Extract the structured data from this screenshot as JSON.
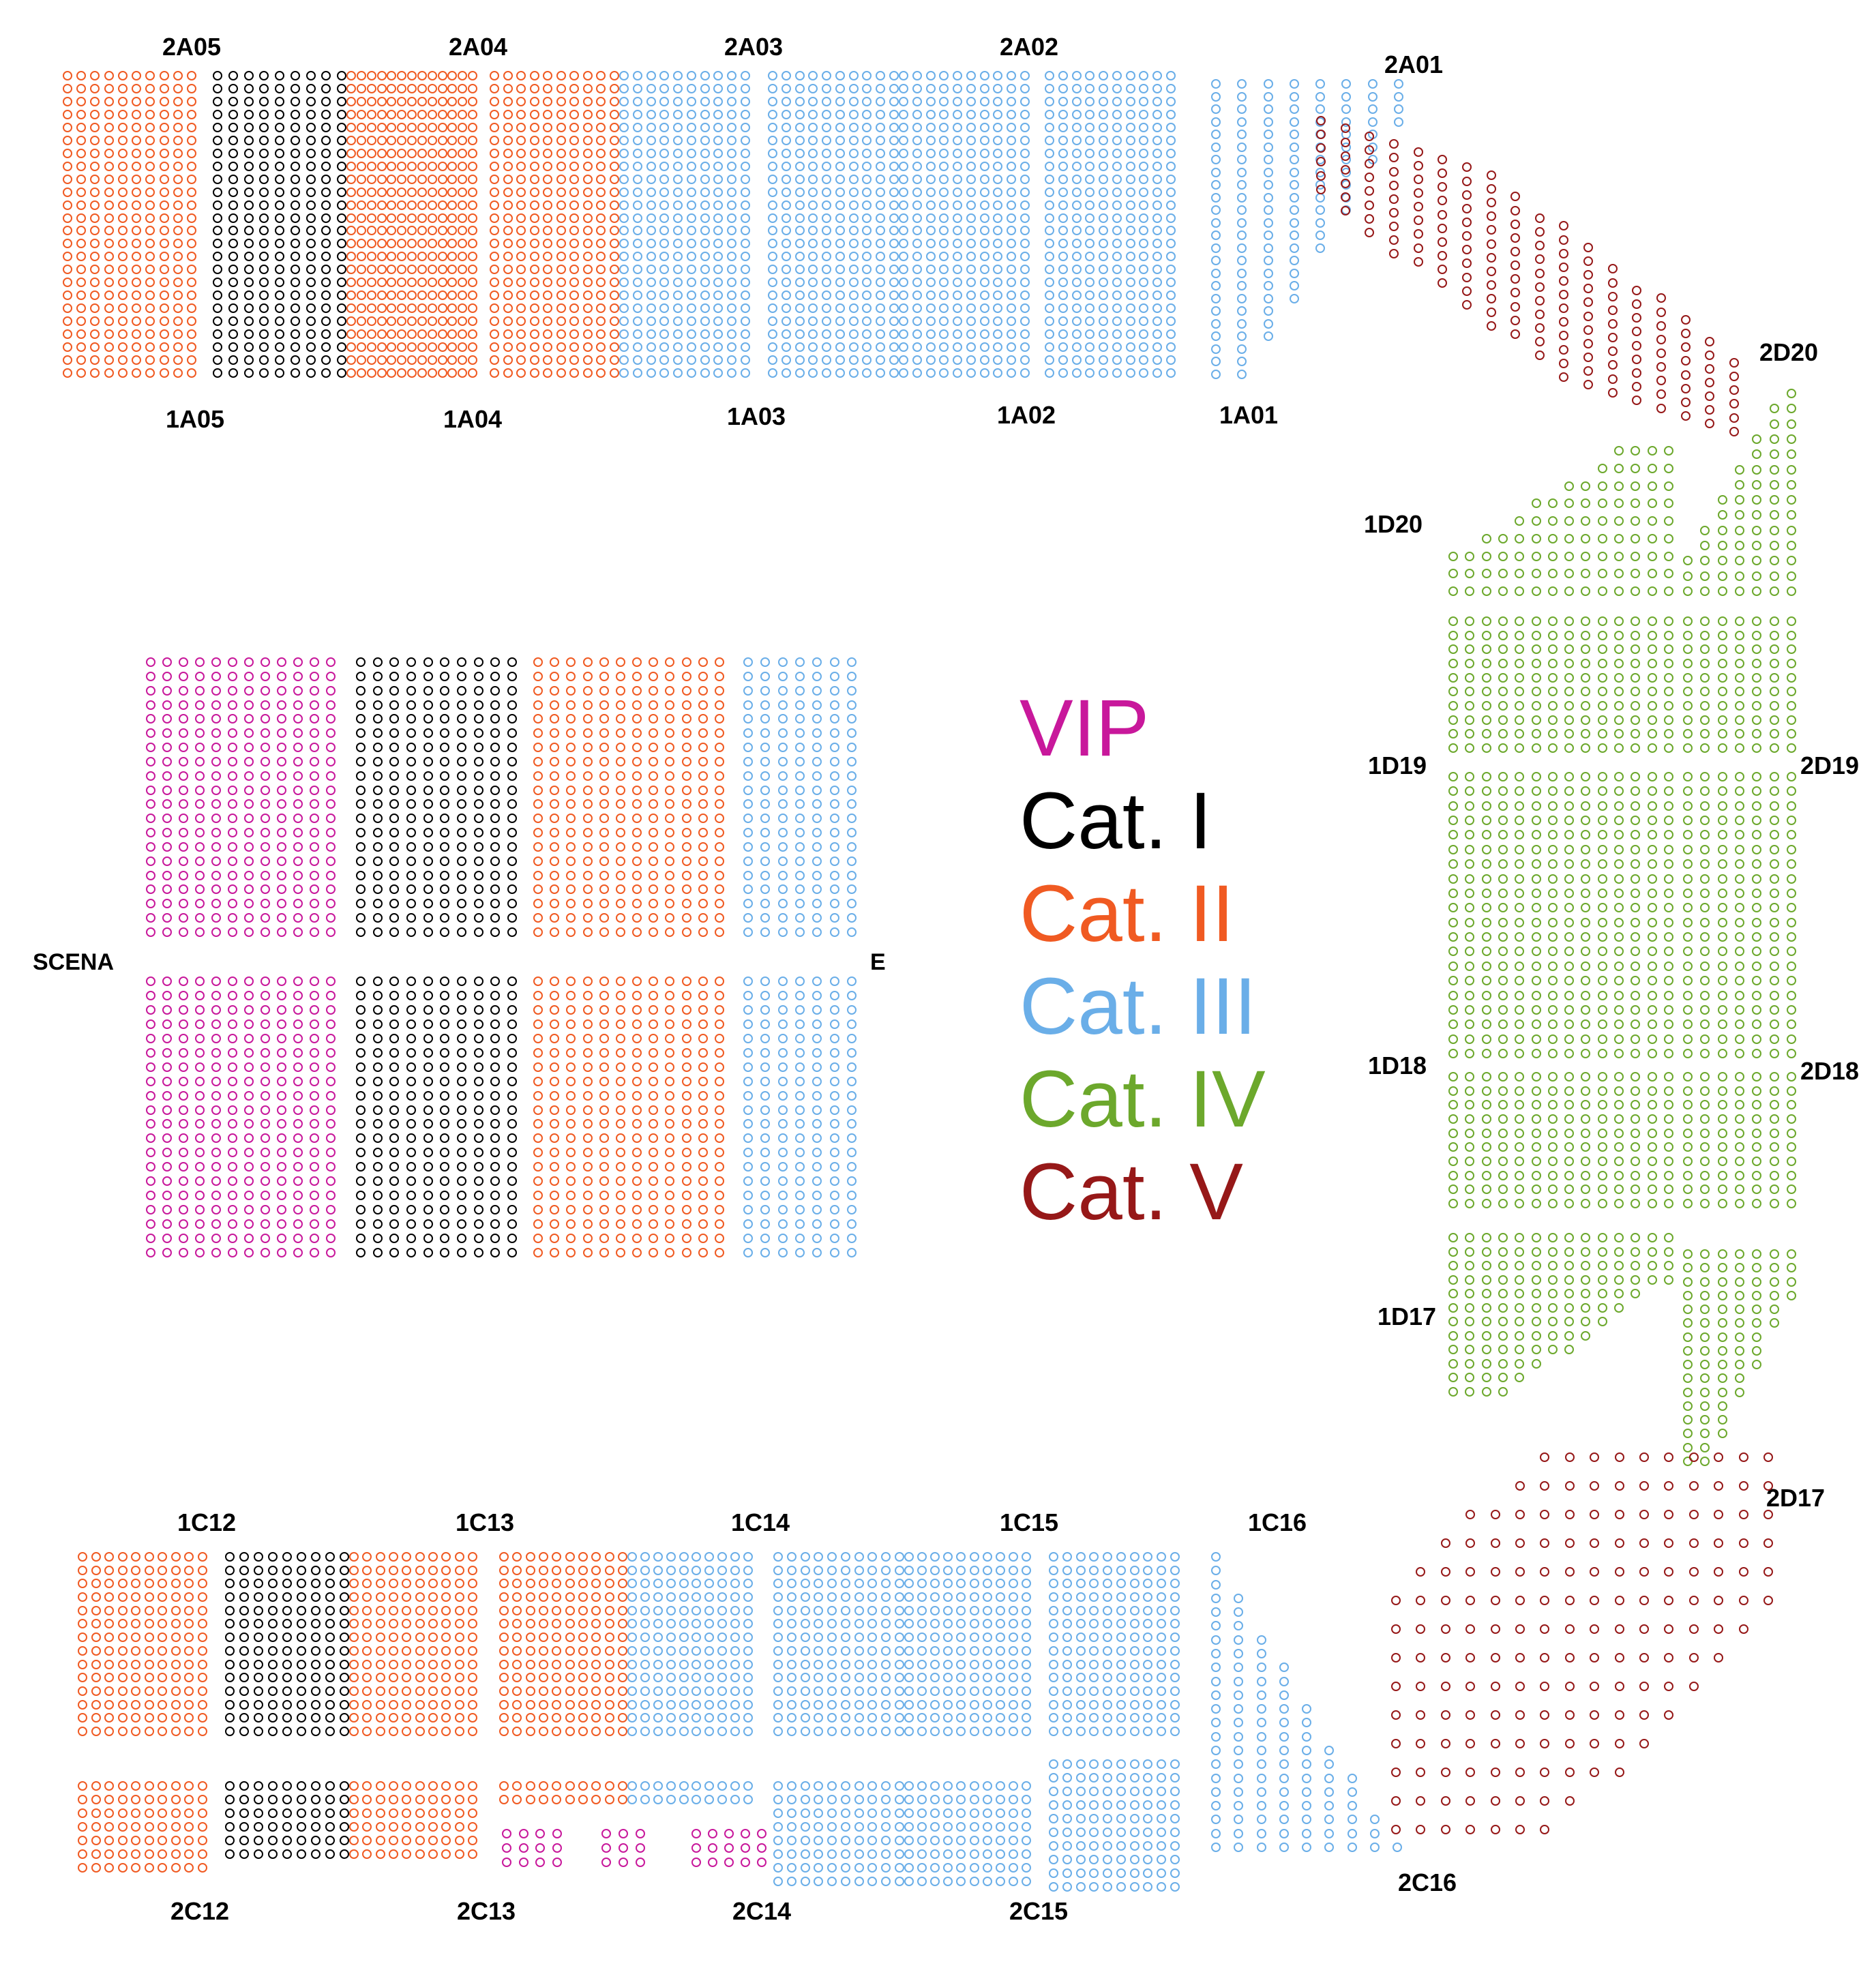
{
  "legend": {
    "vip": {
      "label": "VIP",
      "color": "#c8189b"
    },
    "cat1": {
      "label": "Cat. I",
      "color": "#000000"
    },
    "cat2": {
      "label": "Cat. II",
      "color": "#f05a22"
    },
    "cat3": {
      "label": "Cat. III",
      "color": "#6aaee8"
    },
    "cat4": {
      "label": "Cat. IV",
      "color": "#6ca82c"
    },
    "cat5": {
      "label": "Cat. V",
      "color": "#961818"
    }
  },
  "stage": {
    "left_label": "SCENA",
    "right_label": "E"
  },
  "sections": {
    "top_upper": [
      "2A05",
      "2A04",
      "2A03",
      "2A02",
      "2A01"
    ],
    "top_lower": [
      "1A05",
      "1A04",
      "1A03",
      "1A02",
      "1A01"
    ],
    "right_inner": [
      "1D20",
      "1D19",
      "1D18",
      "1D17"
    ],
    "right_outer": [
      "2D20",
      "2D19",
      "2D18",
      "2D17"
    ],
    "bottom_upper": [
      "1C12",
      "1C13",
      "1C14",
      "1C15",
      "1C16"
    ],
    "bottom_lower": [
      "2C12",
      "2C13",
      "2C14",
      "2C15",
      "2C16"
    ]
  }
}
